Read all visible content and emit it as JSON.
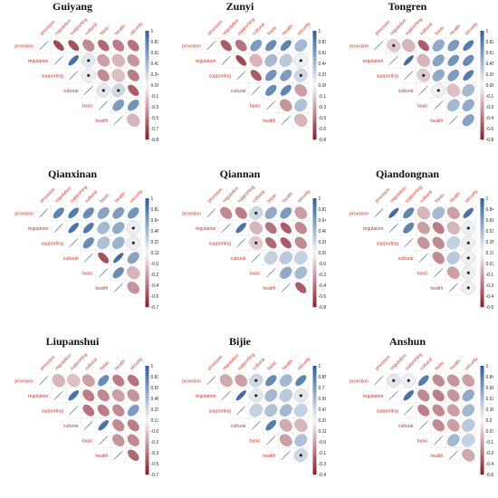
{
  "variables": [
    "provision",
    "regulation",
    "supporting",
    "cultural",
    "basic",
    "health",
    "security"
  ],
  "colors": {
    "positive": "#2b5d9b",
    "negative": "#8b1a2b",
    "neutral": "#f7f7f7",
    "label": "#c0392b"
  },
  "chart_data": [
    {
      "type": "heatmap",
      "title": "Guiyang",
      "colorbar_ticks": [
        "1",
        "0.81",
        "0.62",
        "0.43",
        "0.24",
        "0.05",
        "-0.13",
        "-0.32",
        "-0.51",
        "-0.7",
        "-0.89"
      ],
      "matrix": [
        [
          1,
          -0.8,
          -0.75,
          -0.5,
          -0.65,
          -0.55,
          -0.6
        ],
        [
          -0.8,
          1,
          0.85,
          0.1,
          -0.4,
          -0.3,
          -0.45
        ],
        [
          -0.75,
          0.85,
          1,
          0.05,
          -0.5,
          -0.25,
          -0.55
        ],
        [
          -0.5,
          0.1,
          0.05,
          1,
          0.1,
          0.2,
          -0.7
        ],
        [
          -0.65,
          -0.4,
          -0.5,
          0.1,
          1,
          0.6,
          0.65
        ],
        [
          -0.55,
          -0.3,
          -0.25,
          0.2,
          0.6,
          1,
          -0.3
        ],
        [
          -0.6,
          -0.45,
          -0.55,
          -0.7,
          0.65,
          -0.3,
          1
        ]
      ]
    },
    {
      "type": "heatmap",
      "title": "Zunyi",
      "colorbar_ticks": [
        "1",
        "0.81",
        "0.62",
        "0.44",
        "0.25",
        "0.06",
        "-0.13",
        "-0.32",
        "-0.51",
        "-0.69",
        "-0.88"
      ],
      "matrix": [
        [
          1,
          -0.7,
          -0.6,
          0.6,
          0.7,
          0.75,
          0.4
        ],
        [
          -0.7,
          1,
          -0.8,
          -0.3,
          0.4,
          0.3,
          0.05
        ],
        [
          -0.6,
          -0.8,
          1,
          -0.7,
          0.65,
          0.6,
          0.2
        ],
        [
          0.6,
          -0.3,
          -0.7,
          1,
          0.7,
          0.75,
          -0.4
        ],
        [
          0.7,
          0.4,
          0.65,
          0.7,
          1,
          -0.45,
          0.35
        ],
        [
          0.75,
          0.3,
          0.6,
          0.75,
          -0.45,
          1,
          -0.3
        ],
        [
          0.4,
          0.05,
          0.2,
          -0.4,
          0.35,
          -0.3,
          1
        ]
      ]
    },
    {
      "type": "heatmap",
      "title": "Tongren",
      "colorbar_ticks": [
        "1",
        "0.82",
        "0.63",
        "0.45",
        "0.26",
        "0.08",
        "-0.1",
        "-0.29",
        "-0.47",
        "-0.65",
        "-0.84"
      ],
      "matrix": [
        [
          1,
          -0.2,
          -0.3,
          -0.7,
          0.5,
          0.6,
          0.8
        ],
        [
          -0.2,
          1,
          0.9,
          -0.3,
          0.55,
          0.65,
          0.7
        ],
        [
          -0.3,
          0.9,
          1,
          -0.2,
          0.5,
          0.6,
          0.8
        ],
        [
          -0.7,
          -0.3,
          -0.2,
          1,
          0.05,
          -0.25,
          0.4
        ],
        [
          0.5,
          0.55,
          0.5,
          0.05,
          1,
          0.4,
          0.5
        ],
        [
          0.6,
          0.65,
          0.6,
          -0.25,
          0.4,
          1,
          0.55
        ],
        [
          0.8,
          0.7,
          0.8,
          0.4,
          0.5,
          0.55,
          1
        ]
      ]
    },
    {
      "type": "heatmap",
      "title": "Qianxinan",
      "colorbar_ticks": [
        "1",
        "0.82",
        "0.64",
        "0.46",
        "0.29",
        "0.11",
        "-0.07",
        "-0.25",
        "-0.43",
        "-0.61",
        "-0.79"
      ],
      "matrix": [
        [
          1,
          0.75,
          0.8,
          0.7,
          0.55,
          0.6,
          0.65
        ],
        [
          0.75,
          1,
          0.85,
          0.8,
          0.4,
          0.5,
          0.05
        ],
        [
          0.8,
          0.85,
          1,
          0.7,
          0.35,
          0.45,
          0.05
        ],
        [
          0.7,
          0.8,
          0.7,
          1,
          -0.75,
          0.9,
          0.55
        ],
        [
          0.55,
          0.4,
          0.35,
          -0.75,
          1,
          0.7,
          -0.3
        ],
        [
          0.6,
          0.5,
          0.45,
          0.9,
          0.7,
          1,
          -0.45
        ],
        [
          0.65,
          0.05,
          0.05,
          0.55,
          -0.3,
          -0.45,
          1
        ]
      ]
    },
    {
      "type": "heatmap",
      "title": "Qiannan",
      "colorbar_ticks": [
        "1",
        "0.82",
        "0.64",
        "0.46",
        "0.28",
        "0.09",
        "-0.09",
        "-0.27",
        "-0.45",
        "-0.63",
        "-0.81"
      ],
      "matrix": [
        [
          1,
          -0.5,
          -0.55,
          0.2,
          0.5,
          0.6,
          -0.4
        ],
        [
          -0.5,
          1,
          0.85,
          -0.3,
          -0.6,
          -0.7,
          -0.5
        ],
        [
          -0.55,
          0.85,
          1,
          -0.2,
          -0.65,
          -0.7,
          -0.5
        ],
        [
          0.2,
          -0.3,
          -0.2,
          1,
          0.25,
          0.3,
          0.25
        ],
        [
          0.5,
          -0.6,
          -0.65,
          0.25,
          1,
          0.5,
          0.4
        ],
        [
          0.6,
          -0.7,
          -0.7,
          0.3,
          0.5,
          1,
          -0.7
        ],
        [
          -0.4,
          -0.5,
          -0.5,
          0.25,
          0.4,
          -0.7,
          1
        ]
      ]
    },
    {
      "type": "heatmap",
      "title": "Qiandongnan",
      "colorbar_ticks": [
        "1",
        "0.84",
        "0.68",
        "0.51",
        "0.35",
        "0.19",
        "0.03",
        "-0.14",
        "-0.3",
        "-0.46",
        "-0.62"
      ],
      "matrix": [
        [
          1,
          0.9,
          0.75,
          -0.3,
          0.4,
          -0.4,
          0.85
        ],
        [
          0.9,
          1,
          0.75,
          -0.4,
          -0.55,
          -0.3,
          0.05
        ],
        [
          0.75,
          0.75,
          1,
          -0.45,
          -0.5,
          0.25,
          0.05
        ],
        [
          -0.3,
          -0.4,
          -0.45,
          1,
          -0.5,
          0.3,
          0.05
        ],
        [
          0.4,
          -0.55,
          -0.5,
          -0.5,
          1,
          -0.4,
          0.05
        ],
        [
          -0.4,
          -0.3,
          0.25,
          0.3,
          -0.4,
          1,
          0.05
        ],
        [
          0.85,
          0.05,
          0.05,
          0.05,
          0.05,
          0.05,
          1
        ]
      ]
    },
    {
      "type": "heatmap",
      "title": "Liupanshui",
      "colorbar_ticks": [
        "1",
        "0.83",
        "0.65",
        "0.48",
        "0.31",
        "0.13",
        "-0.04",
        "-0.21",
        "-0.38",
        "-0.56",
        "-0.73"
      ],
      "matrix": [
        [
          1,
          -0.3,
          -0.25,
          -0.4,
          0.7,
          -0.55,
          -0.6
        ],
        [
          -0.3,
          1,
          0.85,
          -0.55,
          -0.5,
          -0.4,
          -0.45
        ],
        [
          -0.25,
          0.85,
          1,
          -0.6,
          -0.55,
          -0.5,
          0.6
        ],
        [
          -0.4,
          -0.55,
          -0.6,
          1,
          0.85,
          -0.5,
          -0.55
        ],
        [
          0.7,
          -0.5,
          -0.55,
          0.85,
          1,
          -0.45,
          -0.5
        ],
        [
          -0.55,
          -0.4,
          -0.5,
          -0.5,
          -0.45,
          1,
          -0.65
        ],
        [
          -0.6,
          -0.45,
          0.6,
          -0.55,
          -0.5,
          -0.65,
          1
        ]
      ]
    },
    {
      "type": "heatmap",
      "title": "Bijie",
      "colorbar_ticks": [
        "1",
        "0.85",
        "0.7",
        "0.56",
        "0.41",
        "0.26",
        "0.11",
        "-0.04",
        "-0.18",
        "-0.33",
        "-0.48"
      ],
      "matrix": [
        [
          1,
          -0.35,
          -0.4,
          0.2,
          0.7,
          0.4,
          0.75
        ],
        [
          -0.35,
          1,
          0.9,
          0.1,
          0.4,
          0.3,
          0.1
        ],
        [
          -0.4,
          0.9,
          1,
          0.25,
          0.35,
          0.4,
          0.25
        ],
        [
          0.2,
          0.1,
          0.25,
          1,
          0.8,
          -0.35,
          -0.3
        ],
        [
          0.7,
          0.4,
          0.35,
          0.8,
          1,
          -0.4,
          0.35
        ],
        [
          0.4,
          0.3,
          0.4,
          -0.35,
          -0.4,
          1,
          0.2
        ],
        [
          0.75,
          0.1,
          0.25,
          -0.3,
          0.35,
          0.2,
          1
        ]
      ]
    },
    {
      "type": "heatmap",
      "title": "Anshun",
      "colorbar_ticks": [
        "1",
        "0.84",
        "0.68",
        "0.52",
        "0.36",
        "0.2",
        "0.03",
        "-0.13",
        "-0.29",
        "-0.45",
        "-0.62"
      ],
      "matrix": [
        [
          1,
          0.1,
          0.05,
          0.8,
          -0.5,
          -0.45,
          -0.4
        ],
        [
          0.1,
          1,
          0.85,
          -0.5,
          -0.55,
          -0.45,
          0.5
        ],
        [
          0.05,
          0.85,
          1,
          -0.55,
          -0.5,
          -0.4,
          0.4
        ],
        [
          0.8,
          -0.5,
          -0.55,
          1,
          -0.5,
          -0.4,
          0.3
        ],
        [
          -0.5,
          -0.55,
          -0.5,
          -0.5,
          1,
          0.4,
          0.25
        ],
        [
          -0.45,
          -0.45,
          -0.4,
          -0.4,
          0.4,
          1,
          -0.35
        ],
        [
          -0.4,
          0.5,
          0.4,
          0.3,
          0.25,
          -0.35,
          1
        ]
      ]
    }
  ]
}
